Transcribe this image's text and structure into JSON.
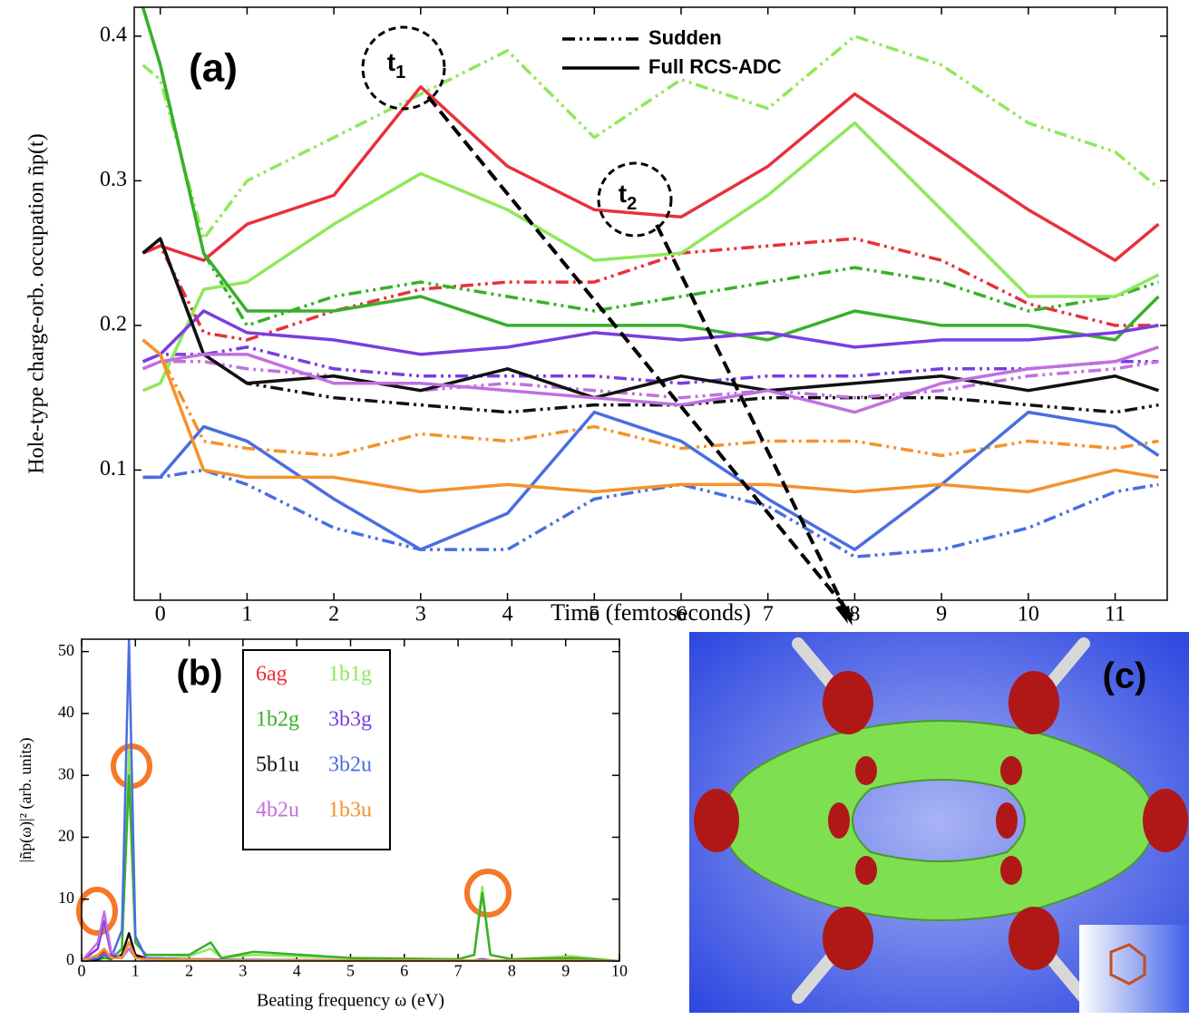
{
  "figure": {
    "panel_c_label": "(c)"
  },
  "chart_data": [
    {
      "type": "line",
      "label": "(a)",
      "xlabel": "Time (femtoseconds)",
      "ylabel": "Hole-type charge-orb. occupation ñp(t)",
      "xlim": [
        -0.3,
        11.6
      ],
      "ylim": [
        0.01,
        0.42
      ],
      "xticks": [
        0,
        1,
        2,
        3,
        4,
        5,
        6,
        7,
        8,
        9,
        10,
        11
      ],
      "yticks": [
        0.1,
        0.2,
        0.3,
        0.4
      ],
      "legend": [
        {
          "label": "Sudden",
          "dash": "dashdot"
        },
        {
          "label": "Full RCS-ADC",
          "dash": "solid"
        }
      ],
      "annotations": [
        {
          "text": "t",
          "sub": "1"
        },
        {
          "text": "t",
          "sub": "2"
        }
      ],
      "x": [
        -0.2,
        0,
        0.5,
        1,
        2,
        3,
        4,
        5,
        6,
        7,
        8,
        9,
        10,
        11,
        11.5
      ],
      "series": [
        {
          "color": "#8fe85a",
          "dash": "dashdot",
          "values": [
            0.38,
            0.37,
            0.26,
            0.3,
            0.33,
            0.36,
            0.39,
            0.33,
            0.37,
            0.35,
            0.4,
            0.38,
            0.34,
            0.32,
            0.295
          ]
        },
        {
          "color": "#e8303a",
          "dash": "dashdot",
          "values": [
            0.25,
            0.255,
            0.195,
            0.19,
            0.21,
            0.225,
            0.23,
            0.23,
            0.25,
            0.255,
            0.26,
            0.245,
            0.215,
            0.2,
            0.2
          ]
        },
        {
          "color": "#38b02a",
          "dash": "dashdot",
          "values": [
            0.42,
            0.38,
            0.25,
            0.2,
            0.22,
            0.23,
            0.22,
            0.21,
            0.22,
            0.23,
            0.24,
            0.23,
            0.21,
            0.22,
            0.23
          ]
        },
        {
          "color": "#7a3de0",
          "dash": "dashdot",
          "values": [
            0.175,
            0.18,
            0.18,
            0.185,
            0.17,
            0.165,
            0.165,
            0.165,
            0.16,
            0.165,
            0.165,
            0.17,
            0.17,
            0.175,
            0.175
          ]
        },
        {
          "color": "#4a6ee0",
          "dash": "dashdot",
          "values": [
            0.095,
            0.095,
            0.1,
            0.09,
            0.06,
            0.045,
            0.045,
            0.08,
            0.09,
            0.075,
            0.04,
            0.045,
            0.06,
            0.085,
            0.09
          ]
        },
        {
          "color": "#111111",
          "dash": "dashdot",
          "values": [
            0.25,
            0.26,
            0.18,
            0.16,
            0.15,
            0.145,
            0.14,
            0.145,
            0.145,
            0.15,
            0.15,
            0.15,
            0.145,
            0.14,
            0.145
          ]
        },
        {
          "color": "#c070e0",
          "dash": "dashdot",
          "values": [
            0.17,
            0.175,
            0.175,
            0.17,
            0.165,
            0.155,
            0.16,
            0.155,
            0.15,
            0.155,
            0.15,
            0.155,
            0.165,
            0.17,
            0.175
          ]
        },
        {
          "color": "#f5922a",
          "dash": "dashdot",
          "values": [
            0.19,
            0.18,
            0.12,
            0.115,
            0.11,
            0.125,
            0.12,
            0.13,
            0.115,
            0.12,
            0.12,
            0.11,
            0.12,
            0.115,
            0.12
          ]
        },
        {
          "color": "#e8303a",
          "dash": "solid",
          "values": [
            0.25,
            0.255,
            0.245,
            0.27,
            0.29,
            0.365,
            0.31,
            0.28,
            0.275,
            0.31,
            0.36,
            0.32,
            0.28,
            0.245,
            0.27
          ]
        },
        {
          "color": "#8fe85a",
          "dash": "solid",
          "values": [
            0.155,
            0.16,
            0.225,
            0.23,
            0.27,
            0.305,
            0.28,
            0.245,
            0.25,
            0.29,
            0.34,
            0.28,
            0.22,
            0.22,
            0.235
          ]
        },
        {
          "color": "#38b02a",
          "dash": "solid",
          "values": [
            0.42,
            0.38,
            0.25,
            0.21,
            0.21,
            0.22,
            0.2,
            0.2,
            0.2,
            0.19,
            0.21,
            0.2,
            0.2,
            0.19,
            0.22
          ]
        },
        {
          "color": "#7a3de0",
          "dash": "solid",
          "values": [
            0.175,
            0.18,
            0.21,
            0.195,
            0.19,
            0.18,
            0.185,
            0.195,
            0.19,
            0.195,
            0.185,
            0.19,
            0.19,
            0.195,
            0.2
          ]
        },
        {
          "color": "#4a6ee0",
          "dash": "solid",
          "values": [
            0.095,
            0.095,
            0.13,
            0.12,
            0.08,
            0.045,
            0.07,
            0.14,
            0.12,
            0.08,
            0.045,
            0.09,
            0.14,
            0.13,
            0.11
          ]
        },
        {
          "color": "#111111",
          "dash": "solid",
          "values": [
            0.25,
            0.26,
            0.18,
            0.16,
            0.165,
            0.155,
            0.17,
            0.15,
            0.165,
            0.155,
            0.16,
            0.165,
            0.155,
            0.165,
            0.155
          ]
        },
        {
          "color": "#c070e0",
          "dash": "solid",
          "values": [
            0.17,
            0.175,
            0.18,
            0.18,
            0.16,
            0.16,
            0.155,
            0.15,
            0.145,
            0.155,
            0.14,
            0.16,
            0.17,
            0.175,
            0.185
          ]
        },
        {
          "color": "#f5922a",
          "dash": "solid",
          "values": [
            0.19,
            0.18,
            0.1,
            0.095,
            0.095,
            0.085,
            0.09,
            0.085,
            0.09,
            0.09,
            0.085,
            0.09,
            0.085,
            0.1,
            0.095
          ]
        }
      ]
    },
    {
      "type": "line",
      "label": "(b)",
      "xlabel": "Beating frequency  ω  (eV)",
      "ylabel": "|ñp(ω)|² (arb. units)",
      "xlim": [
        0,
        10
      ],
      "ylim": [
        0,
        52
      ],
      "xticks": [
        0,
        1,
        2,
        3,
        4,
        5,
        6,
        7,
        8,
        9,
        10
      ],
      "yticks": [
        0,
        10,
        20,
        30,
        40,
        50
      ],
      "x": [
        0,
        0.3,
        0.42,
        0.55,
        0.75,
        0.88,
        1.0,
        1.2,
        2,
        2.4,
        2.6,
        3.2,
        5,
        7,
        7.3,
        7.45,
        7.6,
        8,
        9.1,
        10
      ],
      "series": [
        {
          "name": "6ag",
          "color": "#e8303a",
          "values": [
            0,
            0.5,
            1.5,
            0.5,
            1,
            3,
            1,
            0.5,
            0.3,
            0.3,
            0.2,
            0.2,
            0.1,
            0.1,
            0.1,
            0.3,
            0.1,
            0.1,
            0.1,
            0
          ]
        },
        {
          "name": "1b1g",
          "color": "#8fe85a",
          "values": [
            0,
            0.2,
            0.5,
            0.3,
            2,
            34,
            3,
            1,
            0.8,
            2,
            0.5,
            1,
            0.5,
            0.3,
            1,
            12,
            1,
            0.3,
            0.8,
            0
          ]
        },
        {
          "name": "1b2g",
          "color": "#38b02a",
          "values": [
            0,
            0.2,
            0.5,
            0.3,
            2,
            30,
            3,
            1,
            1,
            3,
            0.5,
            1.5,
            0.5,
            0.3,
            1,
            11,
            1,
            0.3,
            0.5,
            0
          ]
        },
        {
          "name": "3b3g",
          "color": "#7a3de0",
          "values": [
            0,
            2,
            6.5,
            1,
            0.5,
            3,
            0.5,
            0.3,
            0.2,
            0.2,
            0.1,
            0.1,
            0.1,
            0.1,
            0.1,
            0.1,
            0.1,
            0.1,
            0.1,
            0
          ]
        },
        {
          "name": "5b1u",
          "color": "#111111",
          "values": [
            0,
            0.3,
            1,
            0.4,
            1,
            4.5,
            1,
            0.3,
            0.2,
            0.2,
            0.1,
            0.1,
            0.1,
            0.1,
            0.1,
            0.3,
            0.1,
            0.1,
            0.1,
            0
          ]
        },
        {
          "name": "3b2u",
          "color": "#4a6ee0",
          "values": [
            0,
            0.5,
            1,
            0.5,
            5,
            52,
            4,
            0.5,
            0.3,
            0.3,
            0.2,
            0.2,
            0.1,
            0.1,
            0.1,
            0.3,
            0.1,
            0.1,
            0.1,
            0
          ]
        },
        {
          "name": "4b2u",
          "color": "#c070e0",
          "values": [
            0,
            3,
            8,
            1.5,
            0.5,
            2,
            0.5,
            0.3,
            0.2,
            0.2,
            0.1,
            0.1,
            0.1,
            0.1,
            0.1,
            0.1,
            0.1,
            0.1,
            0.1,
            0
          ]
        },
        {
          "name": "1b3u",
          "color": "#f5922a",
          "values": [
            0,
            1,
            2,
            0.5,
            0.5,
            3,
            0.5,
            0.3,
            0.2,
            0.2,
            0.1,
            0.1,
            0.1,
            0.1,
            0.1,
            0.1,
            0.1,
            0.1,
            0.1,
            0
          ]
        }
      ]
    }
  ]
}
